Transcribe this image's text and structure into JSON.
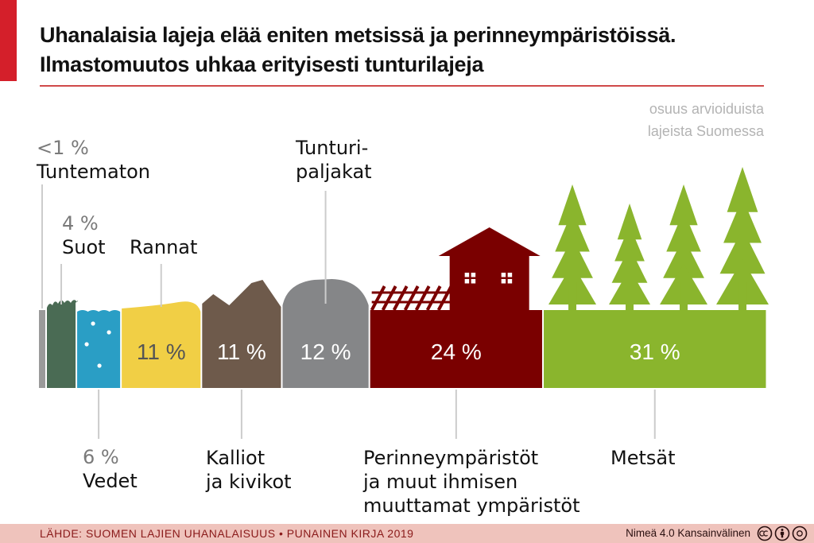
{
  "title": {
    "line1": "Uhanalaisia lajeja elää eniten metsissä ja perinneympäristöissä.",
    "line2": "Ilmastomuutos uhkaa erityisesti tunturilajeja"
  },
  "subtitle": {
    "line1": "osuus arvioiduista",
    "line2": "lajeista Suomessa"
  },
  "colors": {
    "accent": "#d41f2a",
    "unknown": "#9a9a9a",
    "mires": "#4a6b54",
    "waters": "#2a9ec5",
    "shores": "#f1cf45",
    "rocks": "#6e5a4b",
    "fells": "#858688",
    "traditional": "#7a0000",
    "forests": "#8ab52d",
    "footer_bg": "#efc3bc"
  },
  "chart_data": {
    "type": "bar",
    "unit": "%",
    "title": "Uhanalaisia lajeja elää eniten metsissä ja perinneympäristöissä. Ilmastomuutos uhkaa erityisesti tunturilajeja",
    "subtitle": "osuus arvioiduista lajeista Suomessa",
    "categories": [
      {
        "key": "unknown",
        "name_lines": [
          "Tuntematon"
        ],
        "value": 0.5,
        "value_label": "<1 %",
        "label_pos": "above"
      },
      {
        "key": "mires",
        "name_lines": [
          "Suot"
        ],
        "value": 4,
        "value_label": "4 %",
        "label_pos": "above"
      },
      {
        "key": "waters",
        "name_lines": [
          "Vedet"
        ],
        "value": 6,
        "value_label": "6 %",
        "label_pos": "below"
      },
      {
        "key": "shores",
        "name_lines": [
          "Rannat"
        ],
        "value": 11,
        "value_label": "11 %",
        "label_pos": "above"
      },
      {
        "key": "rocks",
        "name_lines": [
          "Kalliot",
          "ja kivikot"
        ],
        "value": 11,
        "value_label": "11 %",
        "label_pos": "below"
      },
      {
        "key": "fells",
        "name_lines": [
          "Tunturi-",
          "paljakat"
        ],
        "value": 12,
        "value_label": "12 %",
        "label_pos": "above"
      },
      {
        "key": "traditional",
        "name_lines": [
          "Perinneympäristöt",
          "ja muut ihmisen",
          "muuttamat ympäristöt"
        ],
        "value": 24,
        "value_label": "24 %",
        "label_pos": "below"
      },
      {
        "key": "forests",
        "name_lines": [
          "Metsät"
        ],
        "value": 31,
        "value_label": "31 %",
        "label_pos": "below"
      }
    ]
  },
  "footer": {
    "source": "LÄHDE: SUOMEN LAJIEN UHANALAISUUS • PUNAINEN KIRJA 2019",
    "license": "Nimeä 4.0 Kansainvälinen",
    "license_icons": [
      "cc-icon",
      "by-icon",
      "attribution-icon"
    ]
  }
}
